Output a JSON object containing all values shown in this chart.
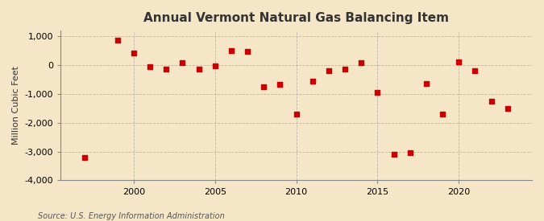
{
  "title": "Annual Vermont Natural Gas Balancing Item",
  "ylabel": "Million Cubic Feet",
  "source": "Source: U.S. Energy Information Administration",
  "background_color": "#f5e6c8",
  "plot_background_color": "#f5e6c8",
  "marker_color": "#cc0000",
  "marker": "s",
  "marker_size": 25,
  "xlim": [
    1995.5,
    2024.5
  ],
  "ylim": [
    -4000,
    1200
  ],
  "yticks": [
    -4000,
    -3000,
    -2000,
    -1000,
    0,
    1000
  ],
  "ytick_labels": [
    "-4,000",
    "-3,000",
    "-2,000",
    "-1,000",
    "0",
    "1,000"
  ],
  "xticks": [
    2000,
    2005,
    2010,
    2015,
    2020
  ],
  "years": [
    1997,
    1999,
    2000,
    2001,
    2002,
    2003,
    2004,
    2005,
    2006,
    2007,
    2008,
    2009,
    2010,
    2011,
    2012,
    2013,
    2014,
    2015,
    2016,
    2017,
    2018,
    2019,
    2020,
    2021,
    2022,
    2023
  ],
  "values": [
    -3200,
    880,
    420,
    -50,
    -150,
    100,
    -150,
    -30,
    500,
    470,
    -750,
    -680,
    -1700,
    -550,
    -200,
    -150,
    80,
    -950,
    -3100,
    -3050,
    -650,
    -1700,
    120,
    -200,
    -1250,
    -1500
  ]
}
